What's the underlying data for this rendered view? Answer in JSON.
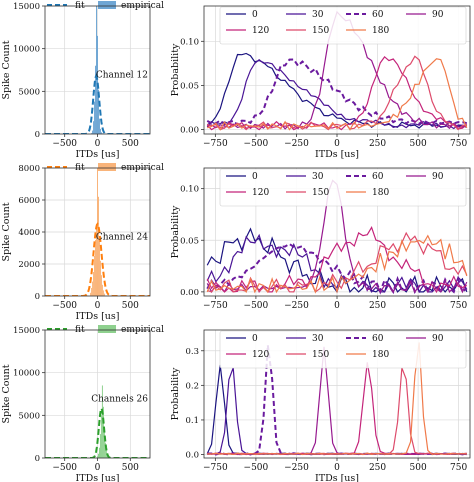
{
  "chart_data": [
    {
      "type": "bar",
      "panel": "hist",
      "row": 0,
      "annotation": "Channel 12",
      "ylabel": "Spike Count",
      "xlabel": "ITDs [us]",
      "xlim": [
        -800,
        800
      ],
      "ylim": [
        0,
        15000
      ],
      "xticks": [
        -500,
        0,
        500
      ],
      "yticks": [
        0,
        5000,
        10000,
        15000
      ],
      "xticklabels": [
        "−500",
        "0",
        "500"
      ],
      "yticklabels": [
        "0",
        "5000",
        "10000",
        "15000"
      ],
      "legend": {
        "fit": "fit",
        "empirical": "empirical",
        "placement": "top"
      },
      "color": "#1f77b4",
      "bar_color": "#6fa6d4",
      "bins_x": [
        -90,
        -75,
        -60,
        -45,
        -30,
        -15,
        0,
        15,
        30,
        45,
        60,
        75
      ],
      "bins_y": [
        100,
        400,
        1500,
        3800,
        8000,
        15000,
        11500,
        5200,
        1800,
        600,
        200,
        80
      ],
      "fit_mean": -20,
      "fit_sd": 45,
      "fit_peak": 6800,
      "grid": true
    },
    {
      "type": "bar",
      "panel": "hist",
      "row": 1,
      "annotation": "Channel 24",
      "ylabel": "Spike Count",
      "xlabel": "ITDs [us]",
      "xlim": [
        -800,
        800
      ],
      "ylim": [
        0,
        8000
      ],
      "xticks": [
        -500,
        0,
        500
      ],
      "yticks": [
        0,
        2000,
        4000,
        6000,
        8000
      ],
      "xticklabels": [
        "−500",
        "0",
        "500"
      ],
      "yticklabels": [
        "0",
        "2000",
        "4000",
        "6000",
        "8000"
      ],
      "legend": {
        "fit": "fit",
        "empirical": "empirical",
        "placement": "top"
      },
      "color": "#ff7f0e",
      "bar_color": "#f9b47a",
      "bins_x": [
        -105,
        -90,
        -75,
        -60,
        -45,
        -30,
        -15,
        0,
        15,
        30,
        45,
        60,
        75,
        90,
        105
      ],
      "bins_y": [
        200,
        500,
        900,
        1500,
        2500,
        3500,
        4500,
        8000,
        6200,
        3600,
        2200,
        1300,
        700,
        350,
        150
      ],
      "fit_mean": 0,
      "fit_sd": 60,
      "fit_peak": 4500,
      "grid": true
    },
    {
      "type": "bar",
      "panel": "hist",
      "row": 2,
      "annotation": "Channels 26",
      "ylabel": "Spike Count",
      "xlabel": "ITDs [us]",
      "xlim": [
        -800,
        800
      ],
      "ylim": [
        0,
        15000
      ],
      "xticks": [
        -500,
        0,
        500
      ],
      "yticks": [
        0,
        5000,
        10000,
        15000
      ],
      "xticklabels": [
        "−500",
        "0",
        "500"
      ],
      "yticklabels": [
        "0",
        "5000",
        "10000",
        "15000"
      ],
      "legend": {
        "fit": "fit",
        "empirical": "empirical",
        "placement": "top"
      },
      "color": "#2ca02c",
      "bar_color": "#8fd18f",
      "bins_x": [
        0,
        15,
        30,
        45,
        60,
        75,
        90,
        105,
        120,
        135,
        150,
        165
      ],
      "bins_y": [
        200,
        500,
        1200,
        2800,
        5000,
        8500,
        6000,
        3500,
        1800,
        900,
        400,
        150
      ],
      "fit_mean": 60,
      "fit_sd": 40,
      "fit_peak": 5800,
      "grid": true
    },
    {
      "type": "line",
      "panel": "prob",
      "row": 0,
      "ylabel": "Probability",
      "xlabel": "ITDs [us]",
      "xlim": [
        -820,
        820
      ],
      "ylim": [
        -0.005,
        0.14
      ],
      "xticks": [
        -750,
        -500,
        -250,
        0,
        250,
        500,
        750
      ],
      "yticks": [
        0,
        0.05,
        0.1
      ],
      "xticklabels": [
        "−750",
        "−500",
        "−250",
        "0",
        "250",
        "500",
        "750"
      ],
      "yticklabels": [
        "0.00",
        "0.05",
        "0.10"
      ],
      "grid": true,
      "series": [
        {
          "name": "0",
          "color": "#1b1480",
          "dashed": false,
          "peak_x": -600,
          "peak_y": 0.085,
          "base": 0.005,
          "wl": 70,
          "wr": 280,
          "jitter": 0.004
        },
        {
          "name": "30",
          "color": "#4a1596",
          "dashed": false,
          "peak_x": -500,
          "peak_y": 0.076,
          "base": 0.005,
          "wl": 70,
          "wr": 280,
          "jitter": 0.004
        },
        {
          "name": "60",
          "color": "#6a1a9e",
          "dashed": true,
          "peak_x": -300,
          "peak_y": 0.078,
          "base": 0.008,
          "wl": 90,
          "wr": 260,
          "jitter": 0.004
        },
        {
          "name": "90",
          "color": "#97198f",
          "dashed": false,
          "peak_x": 0,
          "peak_y": 0.13,
          "base": 0.004,
          "wl": 70,
          "wr": 200,
          "jitter": 0.004
        },
        {
          "name": "120",
          "color": "#c4247a",
          "dashed": false,
          "peak_x": 290,
          "peak_y": 0.082,
          "base": 0.004,
          "wl": 70,
          "wr": 150,
          "jitter": 0.005
        },
        {
          "name": "150",
          "color": "#dd4b6b",
          "dashed": false,
          "peak_x": 480,
          "peak_y": 0.08,
          "base": 0.004,
          "wl": 110,
          "wr": 80,
          "jitter": 0.005
        },
        {
          "name": "180",
          "color": "#f07a4a",
          "dashed": false,
          "peak_x": 630,
          "peak_y": 0.08,
          "base": 0.004,
          "wl": 140,
          "wr": 60,
          "jitter": 0.005
        }
      ]
    },
    {
      "type": "line",
      "panel": "prob",
      "row": 1,
      "ylabel": "Probability",
      "xlabel": "",
      "xlim": [
        -820,
        820
      ],
      "ylim": [
        -0.004,
        0.12
      ],
      "xticks": [
        -750,
        -500,
        -250,
        0,
        250,
        500,
        750
      ],
      "yticks": [
        0,
        0.05,
        0.1
      ],
      "xticklabels": [
        "−750",
        "−500",
        "−250",
        "0",
        "250",
        "500",
        "750"
      ],
      "yticklabels": [
        "0.00",
        "0.05",
        "0.10"
      ],
      "grid": true,
      "series": [
        {
          "name": "0",
          "color": "#1b1480",
          "dashed": false,
          "peak_x": -550,
          "peak_y": 0.052,
          "base": 0.004,
          "wl": 200,
          "wr": 220,
          "jitter": 0.012
        },
        {
          "name": "30",
          "color": "#4a1596",
          "dashed": false,
          "peak_x": -450,
          "peak_y": 0.048,
          "base": 0.004,
          "wl": 200,
          "wr": 230,
          "jitter": 0.012
        },
        {
          "name": "60",
          "color": "#6a1a9e",
          "dashed": true,
          "peak_x": -300,
          "peak_y": 0.045,
          "base": 0.005,
          "wl": 180,
          "wr": 220,
          "jitter": 0.008
        },
        {
          "name": "90",
          "color": "#97198f",
          "dashed": false,
          "peak_x": -20,
          "peak_y": 0.11,
          "base": 0.004,
          "wl": 60,
          "wr": 60,
          "jitter": 0.008
        },
        {
          "name": "120",
          "color": "#c4247a",
          "dashed": false,
          "peak_x": 150,
          "peak_y": 0.055,
          "base": 0.004,
          "wl": 180,
          "wr": 200,
          "jitter": 0.01
        },
        {
          "name": "150",
          "color": "#dd4b6b",
          "dashed": false,
          "peak_x": 450,
          "peak_y": 0.05,
          "base": 0.004,
          "wl": 220,
          "wr": 200,
          "jitter": 0.01
        },
        {
          "name": "180",
          "color": "#f07a4a",
          "dashed": false,
          "peak_x": 550,
          "peak_y": 0.05,
          "base": 0.004,
          "wl": 250,
          "wr": 180,
          "jitter": 0.01
        }
      ]
    },
    {
      "type": "line",
      "panel": "prob",
      "row": 2,
      "ylabel": "Probability",
      "xlabel": "ITDs [us]",
      "xlim": [
        -820,
        820
      ],
      "ylim": [
        -0.01,
        0.36
      ],
      "xticks": [
        -750,
        -500,
        -250,
        0,
        250,
        500,
        750
      ],
      "yticks": [
        0,
        0.1,
        0.2,
        0.3
      ],
      "xticklabels": [
        "−750",
        "−500",
        "−250",
        "0",
        "250",
        "500",
        "750"
      ],
      "yticklabels": [
        "0.0",
        "0.1",
        "0.2",
        "0.3"
      ],
      "grid": true,
      "series": [
        {
          "name": "0",
          "color": "#1b1480",
          "dashed": false,
          "peak_x": -720,
          "peak_y": 0.26,
          "base": 0.002,
          "wl": 25,
          "wr": 25,
          "jitter": 0.002
        },
        {
          "name": "30",
          "color": "#4a1596",
          "dashed": false,
          "peak_x": -650,
          "peak_y": 0.27,
          "base": 0.002,
          "wl": 25,
          "wr": 25,
          "jitter": 0.002
        },
        {
          "name": "60",
          "color": "#6a1a9e",
          "dashed": true,
          "peak_x": -420,
          "peak_y": 0.33,
          "base": 0.002,
          "wl": 22,
          "wr": 22,
          "jitter": 0.002
        },
        {
          "name": "90",
          "color": "#97198f",
          "dashed": false,
          "peak_x": -80,
          "peak_y": 0.31,
          "base": 0.002,
          "wl": 25,
          "wr": 25,
          "jitter": 0.002
        },
        {
          "name": "120",
          "color": "#c4247a",
          "dashed": false,
          "peak_x": 190,
          "peak_y": 0.27,
          "base": 0.002,
          "wl": 28,
          "wr": 28,
          "jitter": 0.002
        },
        {
          "name": "150",
          "color": "#dd4b6b",
          "dashed": false,
          "peak_x": 410,
          "peak_y": 0.27,
          "base": 0.002,
          "wl": 25,
          "wr": 25,
          "jitter": 0.002
        },
        {
          "name": "180",
          "color": "#f07a4a",
          "dashed": false,
          "peak_x": 500,
          "peak_y": 0.34,
          "base": 0.002,
          "wl": 22,
          "wr": 22,
          "jitter": 0.002
        }
      ]
    }
  ]
}
